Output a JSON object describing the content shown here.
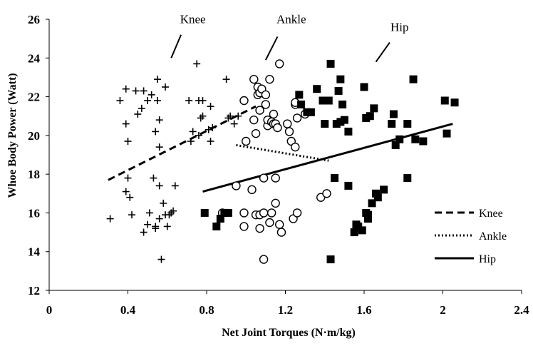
{
  "chart_data": {
    "type": "scatter",
    "xlabel": "Net Joint Torques (N·m/kg)",
    "ylabel": "Whoe Body Power (Watt)",
    "xlim": [
      0,
      2.4
    ],
    "ylim": [
      12,
      26
    ],
    "x_ticks": [
      "0",
      "0.4",
      "0.8",
      "1.2",
      "1.6",
      "2",
      "2.4"
    ],
    "y_ticks": [
      "12",
      "14",
      "16",
      "18",
      "20",
      "22",
      "24",
      "26"
    ],
    "grid": false,
    "legend_position": "bottom-right",
    "annotations": [
      {
        "text": "Knee",
        "series": "Knee",
        "label_x": 0.73,
        "label_y": 25.8,
        "line_from": [
          0.67,
          25.2
        ],
        "line_to": [
          0.62,
          24.0
        ]
      },
      {
        "text": "Ankle",
        "series": "Ankle",
        "label_x": 1.23,
        "label_y": 25.8,
        "line_from": [
          1.16,
          25.1
        ],
        "line_to": [
          1.1,
          23.9
        ]
      },
      {
        "text": "Hip",
        "series": "Hip",
        "label_x": 1.78,
        "label_y": 25.4,
        "line_from": [
          1.73,
          24.8
        ],
        "line_to": [
          1.66,
          23.8
        ]
      }
    ],
    "series": [
      {
        "name": "Knee",
        "marker": "plus",
        "points": [
          [
            0.31,
            15.7
          ],
          [
            0.36,
            21.8
          ],
          [
            0.39,
            22.4
          ],
          [
            0.39,
            20.6
          ],
          [
            0.39,
            17.1
          ],
          [
            0.4,
            19.7
          ],
          [
            0.4,
            17.8
          ],
          [
            0.41,
            16.8
          ],
          [
            0.42,
            15.9
          ],
          [
            0.44,
            22.3
          ],
          [
            0.45,
            21.1
          ],
          [
            0.47,
            21.4
          ],
          [
            0.48,
            22.3
          ],
          [
            0.48,
            15.0
          ],
          [
            0.5,
            21.8
          ],
          [
            0.5,
            15.4
          ],
          [
            0.51,
            16.0
          ],
          [
            0.52,
            22.1
          ],
          [
            0.53,
            17.8
          ],
          [
            0.54,
            20.2
          ],
          [
            0.54,
            15.2
          ],
          [
            0.54,
            15.3
          ],
          [
            0.55,
            21.8
          ],
          [
            0.55,
            22.9
          ],
          [
            0.56,
            20.8
          ],
          [
            0.56,
            19.4
          ],
          [
            0.56,
            17.4
          ],
          [
            0.56,
            15.7
          ],
          [
            0.57,
            13.6
          ],
          [
            0.58,
            16.5
          ],
          [
            0.59,
            22.5
          ],
          [
            0.59,
            15.9
          ],
          [
            0.6,
            15.3
          ],
          [
            0.61,
            15.9
          ],
          [
            0.62,
            16.0
          ],
          [
            0.63,
            16.1
          ],
          [
            0.64,
            17.4
          ],
          [
            0.71,
            21.8
          ],
          [
            0.72,
            19.7
          ],
          [
            0.73,
            20.2
          ],
          [
            0.75,
            23.7
          ],
          [
            0.76,
            21.8
          ],
          [
            0.76,
            20.0
          ],
          [
            0.77,
            20.9
          ],
          [
            0.78,
            21.0
          ],
          [
            0.78,
            21.8
          ],
          [
            0.81,
            20.3
          ],
          [
            0.82,
            19.7
          ],
          [
            0.82,
            21.5
          ],
          [
            0.83,
            20.4
          ],
          [
            0.9,
            22.9
          ],
          [
            0.91,
            20.9
          ],
          [
            0.92,
            21.0
          ],
          [
            0.94,
            20.6
          ],
          [
            0.96,
            21.0
          ]
        ],
        "trendline": {
          "style": "dashed",
          "x": [
            0.3,
            1.05
          ],
          "y": [
            17.7,
            21.5
          ]
        }
      },
      {
        "name": "Ankle",
        "marker": "circle",
        "points": [
          [
            0.99,
            15.3
          ],
          [
            0.99,
            16.0
          ],
          [
            0.99,
            21.8
          ],
          [
            1.0,
            19.7
          ],
          [
            1.03,
            17.2
          ],
          [
            1.04,
            20.8
          ],
          [
            1.04,
            22.9
          ],
          [
            1.05,
            20.1
          ],
          [
            1.05,
            15.9
          ],
          [
            1.06,
            22.5
          ],
          [
            1.06,
            22.1
          ],
          [
            1.07,
            15.2
          ],
          [
            1.07,
            15.9
          ],
          [
            1.07,
            21.3
          ],
          [
            1.07,
            22.2
          ],
          [
            1.08,
            22.4
          ],
          [
            1.09,
            17.8
          ],
          [
            1.09,
            16.0
          ],
          [
            1.09,
            13.6
          ],
          [
            1.1,
            22.1
          ],
          [
            1.1,
            21.6
          ],
          [
            1.11,
            20.5
          ],
          [
            1.11,
            20.8
          ],
          [
            1.12,
            22.9
          ],
          [
            1.12,
            15.5
          ],
          [
            1.13,
            16.0
          ],
          [
            1.13,
            20.7
          ],
          [
            1.14,
            20.6
          ],
          [
            1.14,
            21.1
          ],
          [
            1.15,
            16.5
          ],
          [
            1.15,
            17.8
          ],
          [
            1.15,
            20.6
          ],
          [
            1.16,
            20.4
          ],
          [
            1.17,
            23.7
          ],
          [
            1.17,
            15.4
          ],
          [
            1.18,
            15.0
          ],
          [
            1.21,
            20.6
          ],
          [
            1.22,
            20.2
          ],
          [
            1.23,
            19.7
          ],
          [
            1.24,
            15.7
          ],
          [
            1.25,
            19.4
          ],
          [
            1.25,
            21.6
          ],
          [
            1.25,
            21.7
          ],
          [
            1.26,
            20.9
          ],
          [
            1.26,
            16.0
          ],
          [
            1.38,
            16.8
          ],
          [
            1.41,
            17.0
          ],
          [
            0.88,
            16.0
          ],
          [
            0.95,
            17.4
          ],
          [
            1.3,
            21.1
          ]
        ],
        "trendline": {
          "style": "dotted",
          "x": [
            0.95,
            1.42
          ],
          "y": [
            19.5,
            18.7
          ]
        }
      },
      {
        "name": "Hip",
        "marker": "square",
        "points": [
          [
            0.79,
            16.0
          ],
          [
            0.85,
            15.3
          ],
          [
            0.87,
            15.7
          ],
          [
            0.89,
            16.0
          ],
          [
            0.91,
            16.0
          ],
          [
            1.27,
            22.1
          ],
          [
            1.28,
            21.6
          ],
          [
            1.31,
            21.2
          ],
          [
            1.33,
            21.2
          ],
          [
            1.36,
            22.4
          ],
          [
            1.39,
            21.8
          ],
          [
            1.4,
            20.6
          ],
          [
            1.42,
            21.8
          ],
          [
            1.43,
            23.7
          ],
          [
            1.43,
            13.6
          ],
          [
            1.45,
            17.8
          ],
          [
            1.46,
            20.6
          ],
          [
            1.47,
            22.3
          ],
          [
            1.48,
            20.7
          ],
          [
            1.48,
            22.9
          ],
          [
            1.49,
            21.6
          ],
          [
            1.5,
            20.8
          ],
          [
            1.52,
            20.2
          ],
          [
            1.52,
            17.4
          ],
          [
            1.55,
            15.0
          ],
          [
            1.56,
            15.4
          ],
          [
            1.57,
            15.3
          ],
          [
            1.59,
            15.1
          ],
          [
            1.6,
            22.5
          ],
          [
            1.61,
            20.9
          ],
          [
            1.61,
            16.0
          ],
          [
            1.62,
            15.7
          ],
          [
            1.62,
            15.9
          ],
          [
            1.63,
            21.0
          ],
          [
            1.64,
            16.5
          ],
          [
            1.65,
            21.4
          ],
          [
            1.66,
            17.0
          ],
          [
            1.67,
            16.8
          ],
          [
            1.7,
            17.2
          ],
          [
            1.74,
            20.6
          ],
          [
            1.75,
            21.1
          ],
          [
            1.76,
            19.5
          ],
          [
            1.78,
            19.8
          ],
          [
            1.82,
            20.6
          ],
          [
            1.82,
            17.8
          ],
          [
            1.85,
            22.9
          ],
          [
            1.86,
            19.8
          ],
          [
            1.9,
            19.7
          ],
          [
            2.01,
            21.8
          ],
          [
            2.02,
            20.1
          ],
          [
            2.06,
            21.7
          ]
        ],
        "trendline": {
          "style": "solid",
          "x": [
            0.78,
            2.05
          ],
          "y": [
            17.1,
            20.6
          ]
        }
      }
    ]
  }
}
